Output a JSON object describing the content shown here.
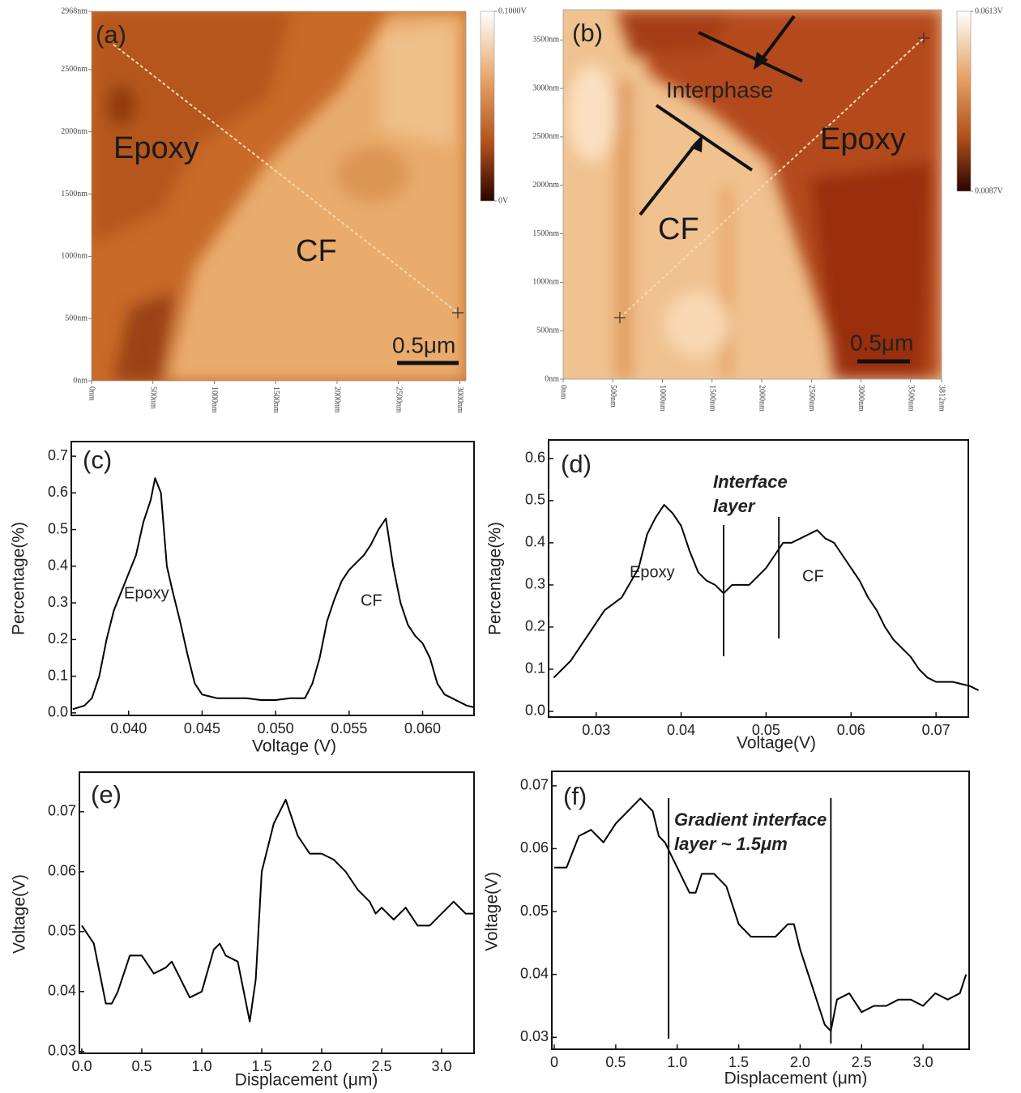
{
  "chart_data": [
    {
      "type": "heatmap",
      "label": "(a)",
      "annotations": [
        "Epoxy",
        "CF"
      ],
      "scale_bar": "0.5μm",
      "xlim": [
        0,
        3050
      ],
      "ylim": [
        0,
        2968
      ],
      "xticks": [
        {
          "value": 0,
          "label": "0nm"
        },
        {
          "value": 500,
          "label": "500nm"
        },
        {
          "value": 1000,
          "label": "1000nm"
        },
        {
          "value": 1500,
          "label": "1500nm"
        },
        {
          "value": 2000,
          "label": "2000nm"
        },
        {
          "value": 2500,
          "label": "2500nm"
        },
        {
          "value": 3000,
          "label": "3000nm"
        }
      ],
      "yticks": [
        {
          "value": 0,
          "label": "0nm"
        },
        {
          "value": 500,
          "label": "500nm"
        },
        {
          "value": 1000,
          "label": "1000nm"
        },
        {
          "value": 1500,
          "label": "1500nm"
        },
        {
          "value": 2000,
          "label": "2000nm"
        },
        {
          "value": 2500,
          "label": "2500nm"
        },
        {
          "value": 2968,
          "label": "2968nm"
        }
      ],
      "clim": [
        0,
        0.1
      ],
      "cticks": [
        {
          "value": 0,
          "label": "0V"
        },
        {
          "value": 0.1,
          "label": "0.1000V"
        }
      ]
    },
    {
      "type": "heatmap",
      "label": "(b)",
      "annotations": [
        "Interphase",
        "Epoxy",
        "CF"
      ],
      "scale_bar": "0.5μm",
      "xlim": [
        0,
        3812
      ],
      "ylim": [
        0,
        3812
      ],
      "xticks": [
        {
          "value": 0,
          "label": "0nm"
        },
        {
          "value": 500,
          "label": "500nm"
        },
        {
          "value": 1000,
          "label": "1000nm"
        },
        {
          "value": 1500,
          "label": "1500nm"
        },
        {
          "value": 2000,
          "label": "2000nm"
        },
        {
          "value": 2500,
          "label": "2500nm"
        },
        {
          "value": 3000,
          "label": "3000nm"
        },
        {
          "value": 3500,
          "label": "3500nm"
        },
        {
          "value": 3812,
          "label": "3812nm"
        }
      ],
      "yticks": [
        {
          "value": 0,
          "label": "0nm"
        },
        {
          "value": 500,
          "label": "500nm"
        },
        {
          "value": 1000,
          "label": "1000nm"
        },
        {
          "value": 1500,
          "label": "1500nm"
        },
        {
          "value": 2000,
          "label": "2000nm"
        },
        {
          "value": 2500,
          "label": "2500nm"
        },
        {
          "value": 3000,
          "label": "3000nm"
        },
        {
          "value": 3500,
          "label": "3500nm"
        }
      ],
      "clim": [
        0.0087,
        0.0613
      ],
      "cticks": [
        {
          "value": 0.0087,
          "label": "0.0087V"
        },
        {
          "value": 0.0613,
          "label": "0.0613V"
        }
      ]
    },
    {
      "type": "line",
      "label": "(c)",
      "xlabel": "Voltage (V)",
      "ylabel": "Percentage(%)",
      "annotations": [
        "Epoxy",
        "CF"
      ],
      "color": "#000000",
      "xlim": [
        0.0361,
        0.0635
      ],
      "ylim": [
        -0.007,
        0.74
      ],
      "xticks": [
        {
          "value": 0.04,
          "label": "0.040"
        },
        0.045,
        {
          "value": 0.05,
          "label": "0.050"
        },
        0.055,
        {
          "value": 0.06,
          "label": "0.060"
        }
      ],
      "yticks": [
        {
          "value": 0,
          "label": "0.0"
        },
        0.1,
        0.2,
        0.3,
        0.4,
        0.5,
        0.6,
        0.7
      ],
      "x": [
        0.0362,
        0.037,
        0.0375,
        0.038,
        0.0385,
        0.039,
        0.0395,
        0.04,
        0.0405,
        0.041,
        0.0415,
        0.0418,
        0.0422,
        0.0426,
        0.043,
        0.0435,
        0.044,
        0.0445,
        0.045,
        0.046,
        0.047,
        0.048,
        0.049,
        0.05,
        0.051,
        0.052,
        0.0525,
        0.053,
        0.0535,
        0.054,
        0.0545,
        0.055,
        0.0555,
        0.056,
        0.0565,
        0.057,
        0.0575,
        0.058,
        0.0585,
        0.059,
        0.0595,
        0.06,
        0.0605,
        0.061,
        0.0615,
        0.062,
        0.063,
        0.0635
      ],
      "values": [
        0.01,
        0.02,
        0.04,
        0.1,
        0.2,
        0.28,
        0.33,
        0.38,
        0.43,
        0.52,
        0.58,
        0.64,
        0.6,
        0.4,
        0.33,
        0.25,
        0.16,
        0.08,
        0.05,
        0.04,
        0.04,
        0.04,
        0.035,
        0.035,
        0.04,
        0.04,
        0.08,
        0.15,
        0.25,
        0.31,
        0.36,
        0.39,
        0.41,
        0.43,
        0.46,
        0.5,
        0.53,
        0.4,
        0.3,
        0.24,
        0.21,
        0.19,
        0.15,
        0.08,
        0.05,
        0.04,
        0.02,
        0.015
      ]
    },
    {
      "type": "line",
      "label": "(d)",
      "xlabel": "Voltage(V)",
      "ylabel": "Percentage(%)",
      "annotations": [
        "Interface",
        "layer",
        "Epoxy",
        "CF"
      ],
      "color": "#000000",
      "xlim": [
        0.0244,
        0.0738
      ],
      "ylim": [
        -0.0135,
        0.644
      ],
      "vlines": [
        0.045,
        0.0515
      ],
      "xticks": [
        0.03,
        0.04,
        0.05,
        0.06,
        0.07
      ],
      "yticks": [
        {
          "value": 0,
          "label": "0.0"
        },
        0.1,
        0.2,
        0.3,
        0.4,
        0.5,
        0.6
      ],
      "x": [
        0.025,
        0.027,
        0.029,
        0.031,
        0.033,
        0.035,
        0.036,
        0.037,
        0.038,
        0.039,
        0.04,
        0.041,
        0.042,
        0.043,
        0.044,
        0.045,
        0.046,
        0.047,
        0.048,
        0.049,
        0.05,
        0.051,
        0.052,
        0.053,
        0.054,
        0.055,
        0.056,
        0.057,
        0.058,
        0.059,
        0.06,
        0.061,
        0.062,
        0.063,
        0.064,
        0.065,
        0.066,
        0.067,
        0.068,
        0.069,
        0.07,
        0.072,
        0.074,
        0.075
      ],
      "values": [
        0.08,
        0.12,
        0.18,
        0.24,
        0.27,
        0.34,
        0.42,
        0.46,
        0.49,
        0.47,
        0.44,
        0.38,
        0.33,
        0.31,
        0.3,
        0.28,
        0.3,
        0.3,
        0.3,
        0.32,
        0.34,
        0.37,
        0.4,
        0.4,
        0.41,
        0.42,
        0.43,
        0.41,
        0.4,
        0.37,
        0.34,
        0.31,
        0.27,
        0.24,
        0.2,
        0.17,
        0.15,
        0.13,
        0.1,
        0.08,
        0.07,
        0.07,
        0.06,
        0.05
      ]
    },
    {
      "type": "line",
      "label": "(e)",
      "xlabel": "Displacement  (μm)",
      "ylabel": "Voltage(V)",
      "color": "#000000",
      "xlim": [
        -0.02,
        3.27
      ],
      "ylim": [
        0.0297,
        0.0766
      ],
      "xticks": [
        {
          "value": 0,
          "label": "0.0"
        },
        0.5,
        {
          "value": 1,
          "label": "1.0"
        },
        1.5,
        {
          "value": 2,
          "label": "2.0"
        },
        2.5,
        {
          "value": 3,
          "label": "3.0"
        }
      ],
      "yticks": [
        0.03,
        0.04,
        0.05,
        0.06,
        0.07
      ],
      "x": [
        0,
        0.1,
        0.2,
        0.25,
        0.3,
        0.4,
        0.5,
        0.6,
        0.7,
        0.75,
        0.8,
        0.9,
        1,
        1.1,
        1.15,
        1.2,
        1.3,
        1.35,
        1.4,
        1.45,
        1.5,
        1.6,
        1.7,
        1.8,
        1.9,
        2,
        2.1,
        2.2,
        2.3,
        2.4,
        2.45,
        2.5,
        2.6,
        2.7,
        2.8,
        2.9,
        3,
        3.1,
        3.2,
        3.27
      ],
      "values": [
        0.051,
        0.048,
        0.038,
        0.038,
        0.04,
        0.046,
        0.046,
        0.043,
        0.044,
        0.045,
        0.043,
        0.039,
        0.04,
        0.047,
        0.048,
        0.046,
        0.045,
        0.04,
        0.035,
        0.042,
        0.06,
        0.068,
        0.072,
        0.066,
        0.063,
        0.063,
        0.062,
        0.06,
        0.057,
        0.055,
        0.053,
        0.054,
        0.052,
        0.054,
        0.051,
        0.051,
        0.053,
        0.055,
        0.053,
        0.053
      ]
    },
    {
      "type": "line",
      "label": "(f)",
      "xlabel": "Displacement  (μm)",
      "ylabel": "Voltage(V)",
      "annotations": [
        "Gradient interface",
        "layer   ~ 1.5μm"
      ],
      "color": "#000000",
      "xlim": [
        -0.02,
        3.375
      ],
      "ylim": [
        0.0281,
        0.0723
      ],
      "vlines": [
        0.93,
        2.25
      ],
      "xticks": [
        0,
        0.5,
        {
          "value": 1,
          "label": "1.0"
        },
        1.5,
        {
          "value": 2,
          "label": "2.0"
        },
        2.5,
        {
          "value": 3,
          "label": "3.0"
        }
      ],
      "yticks": [
        0.03,
        0.04,
        0.05,
        0.06,
        0.07
      ],
      "x": [
        0,
        0.1,
        0.2,
        0.3,
        0.4,
        0.5,
        0.6,
        0.7,
        0.8,
        0.85,
        0.9,
        1,
        1.1,
        1.15,
        1.2,
        1.3,
        1.4,
        1.5,
        1.6,
        1.7,
        1.8,
        1.9,
        1.95,
        2,
        2.1,
        2.2,
        2.25,
        2.3,
        2.4,
        2.5,
        2.6,
        2.7,
        2.8,
        2.9,
        3,
        3.1,
        3.2,
        3.3,
        3.35
      ],
      "values": [
        0.057,
        0.057,
        0.062,
        0.063,
        0.061,
        0.064,
        0.066,
        0.068,
        0.066,
        0.062,
        0.061,
        0.057,
        0.053,
        0.053,
        0.056,
        0.056,
        0.054,
        0.048,
        0.046,
        0.046,
        0.046,
        0.048,
        0.048,
        0.044,
        0.038,
        0.032,
        0.031,
        0.036,
        0.037,
        0.034,
        0.035,
        0.035,
        0.036,
        0.036,
        0.035,
        0.037,
        0.036,
        0.037,
        0.04
      ]
    }
  ]
}
